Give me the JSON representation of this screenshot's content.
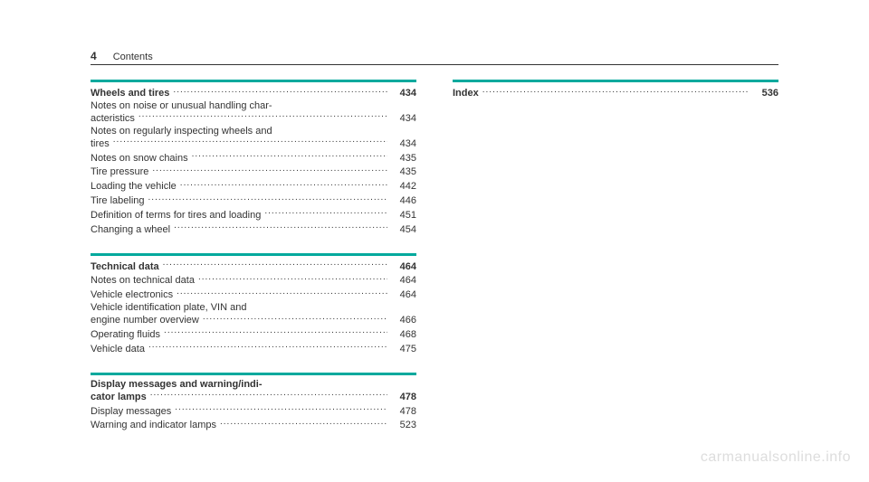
{
  "header": {
    "page_number": "4",
    "title": "Contents"
  },
  "sections": [
    {
      "heading": {
        "label": "Wheels and tires",
        "page": "434"
      },
      "entries": [
        {
          "label": "Notes on noise or unusual handling characteristics",
          "page": "434",
          "multiline": true
        },
        {
          "label": "Notes on regularly inspecting wheels and tires",
          "page": "434",
          "multiline": true
        },
        {
          "label": "Notes on snow chains",
          "page": "435"
        },
        {
          "label": "Tire pressure",
          "page": "435"
        },
        {
          "label": "Loading the vehicle",
          "page": "442"
        },
        {
          "label": "Tire labeling",
          "page": "446"
        },
        {
          "label": "Definition of terms for tires and loading",
          "page": "451"
        },
        {
          "label": "Changing a wheel",
          "page": "454"
        }
      ]
    },
    {
      "heading": {
        "label": "Technical data",
        "page": "464"
      },
      "entries": [
        {
          "label": "Notes on technical data",
          "page": "464"
        },
        {
          "label": "Vehicle electronics",
          "page": "464"
        },
        {
          "label": "Vehicle identification plate, VIN and engine number overview",
          "page": "466",
          "multiline": true
        },
        {
          "label": "Operating fluids",
          "page": "468"
        },
        {
          "label": "Vehicle data",
          "page": "475"
        }
      ]
    },
    {
      "heading": {
        "label": "Display messages and warning/indicator lamps",
        "page": "478",
        "multiline": true
      },
      "entries": [
        {
          "label": "Display messages",
          "page": "478"
        },
        {
          "label": "Warning and indicator lamps",
          "page": "523"
        }
      ]
    }
  ],
  "right_column": {
    "heading": {
      "label": "Index",
      "page": "536"
    }
  },
  "watermark": "carmanualsonline.info",
  "colors": {
    "teal": "#00a99d",
    "text": "#333333",
    "watermark": "#dddddd",
    "background": "#ffffff"
  }
}
